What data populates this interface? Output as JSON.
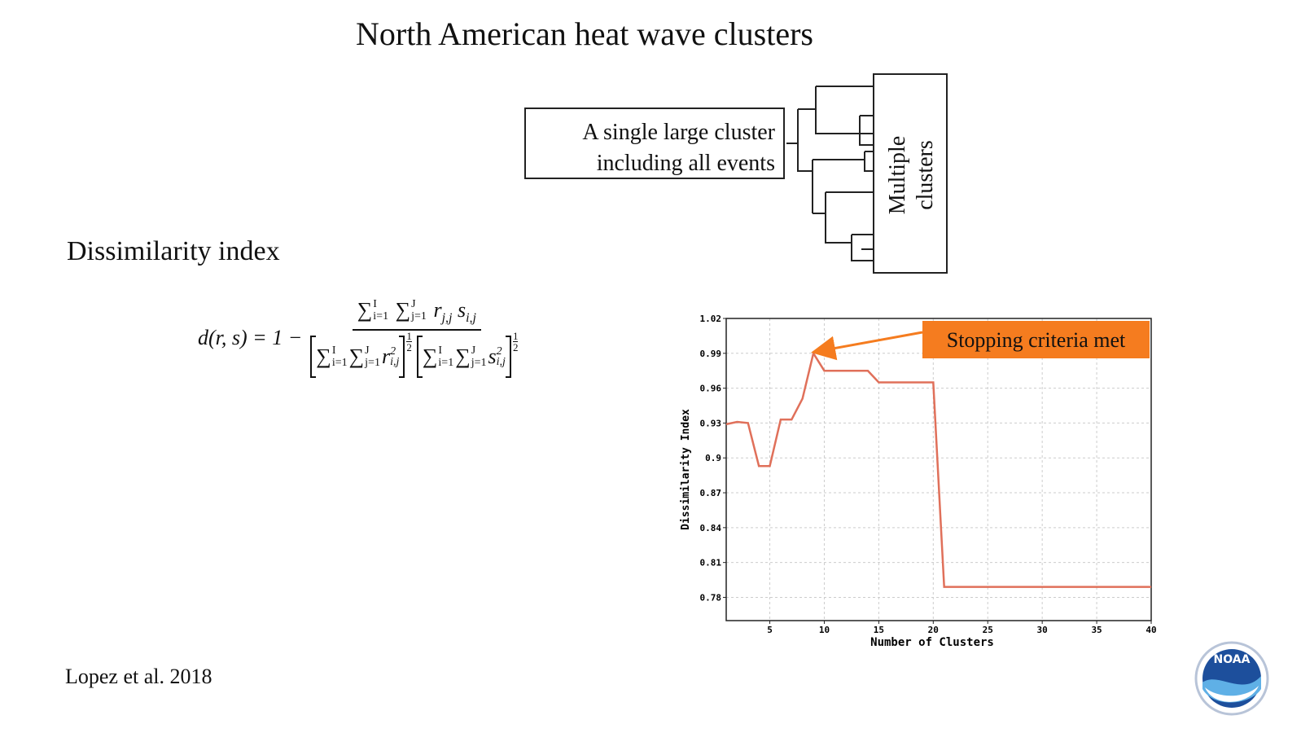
{
  "title": "North American heat wave clusters",
  "dendrogram": {
    "left_label": [
      "A single large cluster",
      "including all events"
    ],
    "right_label": [
      "Multiple",
      "clusters"
    ]
  },
  "section_heading": "Dissimilarity index",
  "formula": {
    "lhs": "d(r, s) = 1 −",
    "sum": "∑",
    "i_lower": "i=1",
    "i_upper": "I",
    "j_lower": "j=1",
    "j_upper": "J",
    "num_r": "r",
    "num_r_sub": "j,j",
    "num_s": "s",
    "num_s_sub": "i,j",
    "den_r": "r",
    "den_s": "s",
    "den_sub": "i,j",
    "den_sup": "2",
    "exp_num": "1",
    "exp_den": "2"
  },
  "citation": "Lopez et al. 2018",
  "logo": "NOAA",
  "chart_data": {
    "type": "line",
    "x_label": "Number of Clusters",
    "y_label": "Dissimilarity Index",
    "x": [
      1,
      2,
      3,
      4,
      5,
      6,
      7,
      8,
      9,
      10,
      11,
      12,
      13,
      14,
      15,
      16,
      17,
      18,
      19,
      20,
      21,
      22,
      23,
      24,
      25,
      26,
      27,
      28,
      29,
      30,
      31,
      32,
      33,
      34,
      35,
      36,
      37,
      38,
      39,
      40
    ],
    "series": [
      {
        "color": "#e0705a",
        "values": [
          0.929,
          0.931,
          0.93,
          0.893,
          0.893,
          0.933,
          0.933,
          0.951,
          0.99,
          0.975,
          0.975,
          0.975,
          0.975,
          0.975,
          0.965,
          0.965,
          0.965,
          0.965,
          0.965,
          0.965,
          0.789,
          0.789,
          0.789,
          0.789,
          0.789,
          0.789,
          0.789,
          0.789,
          0.789,
          0.789,
          0.789,
          0.789,
          0.789,
          0.789,
          0.789,
          0.789,
          0.789,
          0.789,
          0.789,
          0.789
        ]
      }
    ],
    "xlim": [
      1,
      40
    ],
    "ylim": [
      0.76,
      1.02
    ],
    "xticks": [
      5,
      10,
      15,
      20,
      25,
      30,
      35,
      40
    ],
    "yticks": [
      0.78,
      0.81,
      0.84,
      0.87,
      0.9,
      0.93,
      0.96,
      0.99,
      1.02
    ],
    "grid": true,
    "annotation": {
      "text": "Stopping criteria met",
      "x": 9,
      "y": 0.99,
      "color": "#f57c1f"
    }
  }
}
